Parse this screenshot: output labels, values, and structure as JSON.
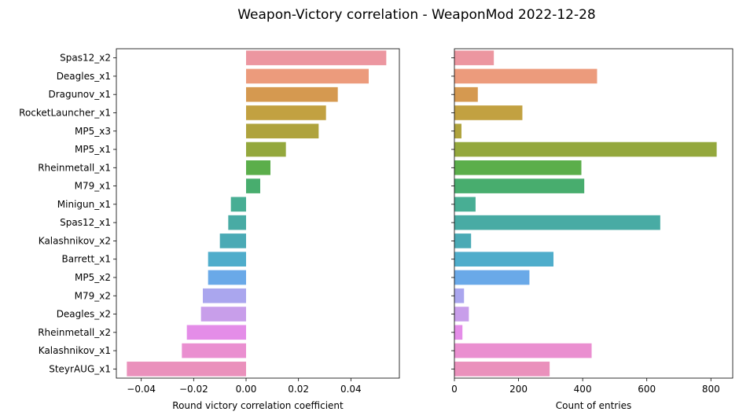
{
  "figure": {
    "title": "Weapon-Victory correlation - WeaponMod 2022-12-28"
  },
  "chart_data": [
    {
      "type": "bar",
      "orientation": "horizontal",
      "categories": [
        "Spas12_x2",
        "Deagles_x1",
        "Dragunov_x1",
        "RocketLauncher_x1",
        "MP5_x3",
        "MP5_x1",
        "Rheinmetall_x1",
        "M79_x1",
        "Minigun_x1",
        "Spas12_x1",
        "Kalashnikov_x2",
        "Barrett_x1",
        "MP5_x2",
        "M79_x2",
        "Deagles_x2",
        "Rheinmetall_x2",
        "Kalashnikov_x1",
        "SteyrAUG_x1"
      ],
      "values": [
        0.0535,
        0.0468,
        0.035,
        0.0305,
        0.0277,
        0.0152,
        0.0093,
        0.0054,
        -0.0058,
        -0.0068,
        -0.01,
        -0.0145,
        -0.0145,
        -0.0165,
        -0.0172,
        -0.0226,
        -0.0245,
        -0.0455
      ],
      "xlim": [
        -0.0495,
        0.0585
      ],
      "xticks": [
        -0.04,
        -0.02,
        0.0,
        0.02,
        0.04
      ],
      "xtick_labels": [
        "−0.04",
        "−0.02",
        "0.00",
        "0.02",
        "0.04"
      ],
      "xlabel": "Round victory correlation coefficient",
      "ylabel": "",
      "colors": [
        "#ec96a0",
        "#ec9b7c",
        "#d59950",
        "#c2a141",
        "#afa33d",
        "#94a83d",
        "#5bae4b",
        "#48ad6e",
        "#48ae94",
        "#48aba4",
        "#4aaab5",
        "#4fadcb",
        "#6aa9e8",
        "#aaa6ee",
        "#c89eea",
        "#e48de8",
        "#ea8fd0",
        "#ea91bc"
      ],
      "grid": false
    },
    {
      "type": "bar",
      "orientation": "horizontal",
      "categories": [
        "Spas12_x2",
        "Deagles_x1",
        "Dragunov_x1",
        "RocketLauncher_x1",
        "MP5_x3",
        "MP5_x1",
        "Rheinmetall_x1",
        "M79_x1",
        "Minigun_x1",
        "Spas12_x1",
        "Kalashnikov_x2",
        "Barrett_x1",
        "MP5_x2",
        "M79_x2",
        "Deagles_x2",
        "Rheinmetall_x2",
        "Kalashnikov_x1",
        "SteyrAUG_x1"
      ],
      "values": [
        123,
        445,
        73,
        212,
        22,
        818,
        396,
        405,
        66,
        642,
        52,
        309,
        234,
        30,
        45,
        25,
        428,
        297
      ],
      "xlim": [
        0,
        868
      ],
      "xticks": [
        0,
        200,
        400,
        600,
        800
      ],
      "xtick_labels": [
        "0",
        "200",
        "400",
        "600",
        "800"
      ],
      "xlabel": "Count of entries",
      "ylabel": "",
      "colors": [
        "#ec96a0",
        "#ec9b7c",
        "#d59950",
        "#c2a141",
        "#afa33d",
        "#94a83d",
        "#5bae4b",
        "#48ad6e",
        "#48ae94",
        "#48aba4",
        "#4aaab5",
        "#4fadcb",
        "#6aa9e8",
        "#aaa6ee",
        "#c89eea",
        "#e48de8",
        "#ea8fd0",
        "#ea91bc"
      ],
      "grid": false
    }
  ]
}
